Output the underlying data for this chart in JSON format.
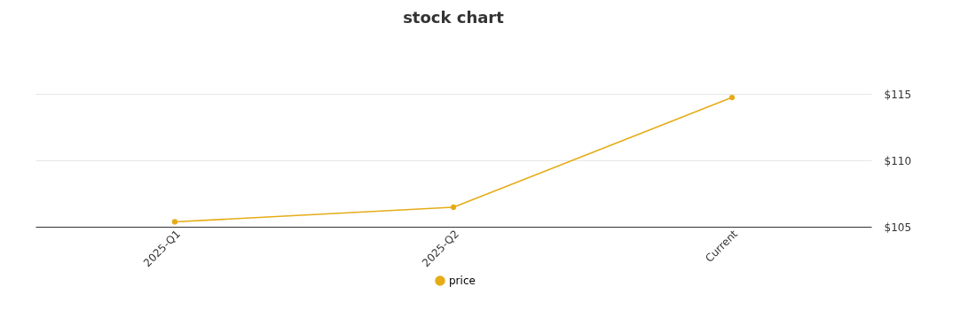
{
  "chart_data": {
    "type": "line",
    "title": "stock chart",
    "categories": [
      "2025-Q1",
      "2025-Q2",
      "Current"
    ],
    "series": [
      {
        "name": "price",
        "color": "#e5ac17",
        "values": [
          105.37,
          106.47,
          114.73
        ]
      }
    ],
    "ylim": [
      105,
      115
    ],
    "yticks": [
      {
        "value": 105,
        "label": "$105"
      },
      {
        "value": 110,
        "label": "$110"
      },
      {
        "value": 115,
        "label": "$115"
      }
    ],
    "grid": "y",
    "legend": "bottom",
    "marker": "circle",
    "line_style": "solid"
  }
}
